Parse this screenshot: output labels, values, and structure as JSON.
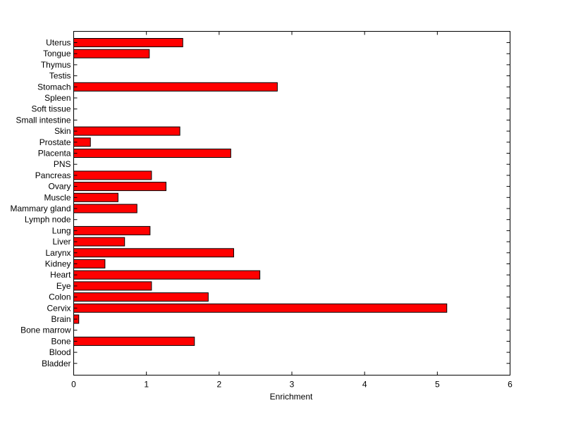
{
  "chart_data": {
    "type": "bar",
    "orientation": "horizontal",
    "xlabel": "Enrichment",
    "ylabel": "",
    "title": "",
    "xlim": [
      0,
      6
    ],
    "xticks": [
      0,
      1,
      2,
      3,
      4,
      5,
      6
    ],
    "grid": false,
    "bar_color": "#ff0000",
    "bar_edge_color": "#000000",
    "categories": [
      "Uterus",
      "Tongue",
      "Thymus",
      "Testis",
      "Stomach",
      "Spleen",
      "Soft tissue",
      "Small intestine",
      "Skin",
      "Prostate",
      "Placenta",
      "PNS",
      "Pancreas",
      "Ovary",
      "Muscle",
      "Mammary gland",
      "Lymph node",
      "Lung",
      "Liver",
      "Larynx",
      "Kidney",
      "Heart",
      "Eye",
      "Colon",
      "Cervix",
      "Brain",
      "Bone marrow",
      "Bone",
      "Blood",
      "Bladder"
    ],
    "values": [
      1.5,
      1.04,
      0,
      0,
      2.8,
      0,
      0,
      0,
      1.46,
      0.23,
      2.16,
      0,
      1.07,
      1.27,
      0.61,
      0.87,
      0,
      1.05,
      0.7,
      2.2,
      0.43,
      2.56,
      1.07,
      1.85,
      5.13,
      0.07,
      0,
      1.66,
      0,
      0
    ]
  }
}
